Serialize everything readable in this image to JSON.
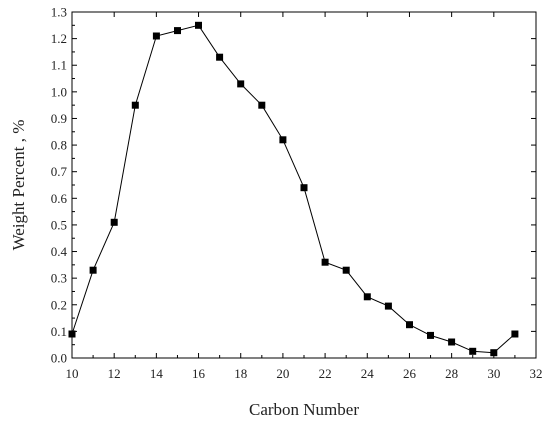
{
  "chart_data": {
    "type": "line",
    "xlabel": "Carbon Number",
    "ylabel": "Weight Percent , %",
    "xlim": [
      10,
      32
    ],
    "ylim": [
      0.0,
      1.3
    ],
    "xticks": [
      "10",
      "12",
      "14",
      "16",
      "18",
      "20",
      "22",
      "24",
      "26",
      "28",
      "30",
      "32"
    ],
    "yticks": [
      "0.0",
      "0.1",
      "0.2",
      "0.3",
      "0.4",
      "0.5",
      "0.6",
      "0.7",
      "0.8",
      "0.9",
      "1.0",
      "1.1",
      "1.2",
      "1.3"
    ],
    "marker": "square",
    "series": [
      {
        "x": [
          10,
          11,
          12,
          13,
          14,
          15,
          16,
          17,
          18,
          19,
          20,
          21,
          22,
          23,
          24,
          25,
          26,
          27,
          28,
          29,
          30,
          31
        ],
        "y": [
          0.09,
          0.33,
          0.51,
          0.95,
          1.21,
          1.23,
          1.25,
          1.13,
          1.03,
          0.95,
          0.82,
          0.64,
          0.36,
          0.33,
          0.23,
          0.195,
          0.125,
          0.085,
          0.06,
          0.025,
          0.02,
          0.09
        ]
      }
    ],
    "colors": {
      "line": "#000000",
      "marker": "#000000",
      "axis": "#000000"
    }
  }
}
